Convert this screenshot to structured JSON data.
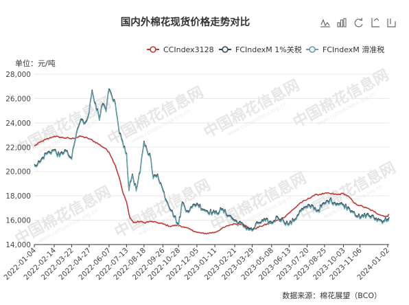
{
  "chart_data": {
    "type": "line",
    "title": "国内外棉花现货价格走势对比",
    "unit_label": "单位：元/吨",
    "source": "数据来源：棉花展望（BCO）",
    "watermark": "中国棉花信息网",
    "watermark_url": "www.cottonchina.org.cn",
    "ylim": [
      14000,
      28000
    ],
    "y_ticks": [
      14000,
      16000,
      18000,
      20000,
      22000,
      24000,
      26000,
      28000
    ],
    "y_tick_labels": [
      "14,000",
      "16,000",
      "18,000",
      "20,000",
      "22,000",
      "24,000",
      "26,000",
      "28,000"
    ],
    "x_start": "2022-01-04",
    "x_end": "2024-01-05",
    "x_tick_labels": [
      "2022-01-04",
      "2022-02-14",
      "2022-03-22",
      "2022-04-27",
      "2022-06-07",
      "2022-07-13",
      "2022-08-18",
      "2022-09-26",
      "2022-10-28",
      "2022-12-05",
      "2023-01-11",
      "2023-02-21",
      "2023-03-29",
      "2023-05-08",
      "2023-06-13",
      "2023-07-20",
      "2023-08-25",
      "2023-10-03",
      "2023-11-06",
      "2024-01-02"
    ],
    "grid": true,
    "legend_position": "top-right",
    "series": [
      {
        "name": "CCIndex3128",
        "color": "#c23531",
        "points": [
          [
            "2022-01-04",
            22100
          ],
          [
            "2022-01-20",
            22500
          ],
          [
            "2022-02-14",
            22900
          ],
          [
            "2022-03-01",
            22800
          ],
          [
            "2022-03-22",
            22700
          ],
          [
            "2022-04-10",
            22900
          ],
          [
            "2022-04-27",
            22700
          ],
          [
            "2022-05-15",
            22300
          ],
          [
            "2022-05-30",
            21900
          ],
          [
            "2022-06-07",
            21600
          ],
          [
            "2022-06-20",
            20500
          ],
          [
            "2022-06-28",
            19500
          ],
          [
            "2022-07-06",
            18200
          ],
          [
            "2022-07-13",
            17500
          ],
          [
            "2022-07-20",
            16200
          ],
          [
            "2022-07-28",
            15800
          ],
          [
            "2022-08-10",
            15900
          ],
          [
            "2022-08-18",
            15800
          ],
          [
            "2022-09-01",
            15900
          ],
          [
            "2022-09-15",
            15800
          ],
          [
            "2022-09-26",
            15700
          ],
          [
            "2022-10-10",
            15500
          ],
          [
            "2022-10-28",
            15600
          ],
          [
            "2022-11-10",
            15400
          ],
          [
            "2022-11-25",
            15200
          ],
          [
            "2022-12-05",
            15000
          ],
          [
            "2022-12-20",
            14900
          ],
          [
            "2023-01-11",
            15000
          ],
          [
            "2023-01-25",
            15300
          ],
          [
            "2023-02-10",
            15600
          ],
          [
            "2023-02-21",
            15700
          ],
          [
            "2023-03-10",
            15700
          ],
          [
            "2023-03-20",
            15400
          ],
          [
            "2023-03-29",
            15200
          ],
          [
            "2023-04-15",
            15500
          ],
          [
            "2023-05-08",
            15800
          ],
          [
            "2023-05-20",
            16000
          ],
          [
            "2023-06-01",
            16200
          ],
          [
            "2023-06-13",
            16600
          ],
          [
            "2023-06-25",
            17000
          ],
          [
            "2023-07-05",
            17400
          ],
          [
            "2023-07-20",
            17700
          ],
          [
            "2023-08-01",
            18000
          ],
          [
            "2023-08-10",
            18100
          ],
          [
            "2023-08-25",
            18200
          ],
          [
            "2023-09-05",
            18200
          ],
          [
            "2023-09-20",
            18100
          ],
          [
            "2023-10-03",
            18200
          ],
          [
            "2023-10-15",
            17900
          ],
          [
            "2023-10-25",
            17400
          ],
          [
            "2023-11-06",
            17200
          ],
          [
            "2023-11-20",
            17000
          ],
          [
            "2023-12-05",
            16700
          ],
          [
            "2023-12-20",
            16400
          ],
          [
            "2024-01-02",
            16300
          ],
          [
            "2024-01-05",
            16500
          ]
        ]
      },
      {
        "name": "FCIndexM 1%关税",
        "color": "#2f4554",
        "points": [
          [
            "2022-01-04",
            20600
          ],
          [
            "2022-01-15",
            20800
          ],
          [
            "2022-01-28",
            21500
          ],
          [
            "2022-02-14",
            21800
          ],
          [
            "2022-02-25",
            21300
          ],
          [
            "2022-03-08",
            21800
          ],
          [
            "2022-03-15",
            21400
          ],
          [
            "2022-03-22",
            21100
          ],
          [
            "2022-04-01",
            23200
          ],
          [
            "2022-04-10",
            24300
          ],
          [
            "2022-04-18",
            24000
          ],
          [
            "2022-04-27",
            24900
          ],
          [
            "2022-05-03",
            26700
          ],
          [
            "2022-05-10",
            25600
          ],
          [
            "2022-05-18",
            24300
          ],
          [
            "2022-05-25",
            25600
          ],
          [
            "2022-06-01",
            25000
          ],
          [
            "2022-06-07",
            26800
          ],
          [
            "2022-06-13",
            26200
          ],
          [
            "2022-06-20",
            25600
          ],
          [
            "2022-06-28",
            23200
          ],
          [
            "2022-07-05",
            22500
          ],
          [
            "2022-07-13",
            21500
          ],
          [
            "2022-07-18",
            18500
          ],
          [
            "2022-07-25",
            19800
          ],
          [
            "2022-08-02",
            18500
          ],
          [
            "2022-08-10",
            20000
          ],
          [
            "2022-08-18",
            22500
          ],
          [
            "2022-08-24",
            21800
          ],
          [
            "2022-08-30",
            21500
          ],
          [
            "2022-09-06",
            19500
          ],
          [
            "2022-09-15",
            19800
          ],
          [
            "2022-09-26",
            18500
          ],
          [
            "2022-10-05",
            17500
          ],
          [
            "2022-10-15",
            16800
          ],
          [
            "2022-10-28",
            15600
          ],
          [
            "2022-11-05",
            17500
          ],
          [
            "2022-11-15",
            16800
          ],
          [
            "2022-11-25",
            17100
          ],
          [
            "2022-12-05",
            17400
          ],
          [
            "2022-12-20",
            16900
          ],
          [
            "2023-01-11",
            16600
          ],
          [
            "2023-01-25",
            16900
          ],
          [
            "2023-02-10",
            16400
          ],
          [
            "2023-02-21",
            16000
          ],
          [
            "2023-03-10",
            15600
          ],
          [
            "2023-03-29",
            15200
          ],
          [
            "2023-04-10",
            15800
          ],
          [
            "2023-04-25",
            16000
          ],
          [
            "2023-05-08",
            15800
          ],
          [
            "2023-05-20",
            16300
          ],
          [
            "2023-06-01",
            16000
          ],
          [
            "2023-06-13",
            15700
          ],
          [
            "2023-06-25",
            16100
          ],
          [
            "2023-07-05",
            16800
          ],
          [
            "2023-07-20",
            17100
          ],
          [
            "2023-08-01",
            17200
          ],
          [
            "2023-08-10",
            16800
          ],
          [
            "2023-08-25",
            17400
          ],
          [
            "2023-09-05",
            17700
          ],
          [
            "2023-09-20",
            17400
          ],
          [
            "2023-10-03",
            17300
          ],
          [
            "2023-10-15",
            17000
          ],
          [
            "2023-10-25",
            16700
          ],
          [
            "2023-11-06",
            16200
          ],
          [
            "2023-11-20",
            16500
          ],
          [
            "2023-12-05",
            16200
          ],
          [
            "2023-12-20",
            16000
          ],
          [
            "2024-01-02",
            16100
          ],
          [
            "2024-01-05",
            16250
          ]
        ]
      },
      {
        "name": "FCIndexM 滑准税",
        "color": "#61a0a8",
        "points": [
          [
            "2022-01-04",
            20500
          ],
          [
            "2022-01-15",
            20700
          ],
          [
            "2022-01-28",
            21400
          ],
          [
            "2022-02-14",
            21700
          ],
          [
            "2022-02-25",
            21200
          ],
          [
            "2022-03-08",
            21700
          ],
          [
            "2022-03-15",
            21300
          ],
          [
            "2022-03-22",
            21000
          ],
          [
            "2022-04-01",
            23100
          ],
          [
            "2022-04-10",
            24200
          ],
          [
            "2022-04-18",
            23900
          ],
          [
            "2022-04-27",
            24800
          ],
          [
            "2022-05-03",
            26600
          ],
          [
            "2022-05-10",
            25500
          ],
          [
            "2022-05-18",
            24200
          ],
          [
            "2022-05-25",
            25500
          ],
          [
            "2022-06-01",
            24900
          ],
          [
            "2022-06-07",
            26700
          ],
          [
            "2022-06-13",
            26100
          ],
          [
            "2022-06-20",
            25500
          ],
          [
            "2022-06-28",
            23100
          ],
          [
            "2022-07-05",
            22400
          ],
          [
            "2022-07-13",
            21400
          ],
          [
            "2022-07-18",
            18400
          ],
          [
            "2022-07-25",
            19700
          ],
          [
            "2022-08-02",
            18400
          ],
          [
            "2022-08-10",
            19900
          ],
          [
            "2022-08-18",
            22400
          ],
          [
            "2022-08-24",
            21700
          ],
          [
            "2022-08-30",
            21400
          ],
          [
            "2022-09-06",
            19400
          ],
          [
            "2022-09-15",
            19700
          ],
          [
            "2022-09-26",
            18400
          ],
          [
            "2022-10-05",
            17400
          ],
          [
            "2022-10-15",
            16700
          ],
          [
            "2022-10-28",
            15500
          ],
          [
            "2022-11-05",
            17400
          ],
          [
            "2022-11-15",
            16700
          ],
          [
            "2022-11-25",
            17000
          ],
          [
            "2022-12-05",
            17300
          ],
          [
            "2022-12-20",
            16800
          ],
          [
            "2023-01-11",
            16500
          ],
          [
            "2023-01-25",
            16800
          ],
          [
            "2023-02-10",
            16300
          ],
          [
            "2023-02-21",
            15900
          ],
          [
            "2023-03-10",
            15500
          ],
          [
            "2023-03-29",
            15100
          ],
          [
            "2023-04-10",
            15700
          ],
          [
            "2023-04-25",
            15900
          ],
          [
            "2023-05-08",
            15700
          ],
          [
            "2023-05-20",
            16200
          ],
          [
            "2023-06-01",
            15900
          ],
          [
            "2023-06-13",
            15600
          ],
          [
            "2023-06-25",
            16000
          ],
          [
            "2023-07-05",
            16700
          ],
          [
            "2023-07-20",
            17000
          ],
          [
            "2023-08-01",
            17100
          ],
          [
            "2023-08-10",
            16700
          ],
          [
            "2023-08-25",
            17300
          ],
          [
            "2023-09-05",
            17600
          ],
          [
            "2023-09-20",
            17300
          ],
          [
            "2023-10-03",
            17200
          ],
          [
            "2023-10-15",
            16900
          ],
          [
            "2023-10-25",
            16600
          ],
          [
            "2023-11-06",
            16100
          ],
          [
            "2023-11-20",
            16400
          ],
          [
            "2023-12-05",
            16100
          ],
          [
            "2023-12-20",
            15900
          ],
          [
            "2024-01-02",
            16000
          ],
          [
            "2024-01-05",
            16150
          ]
        ]
      }
    ]
  },
  "toolbar": {
    "icons": [
      "line-chart-icon",
      "bar-chart-icon",
      "restore-icon",
      "stack-icon",
      "tiled-icon"
    ]
  }
}
